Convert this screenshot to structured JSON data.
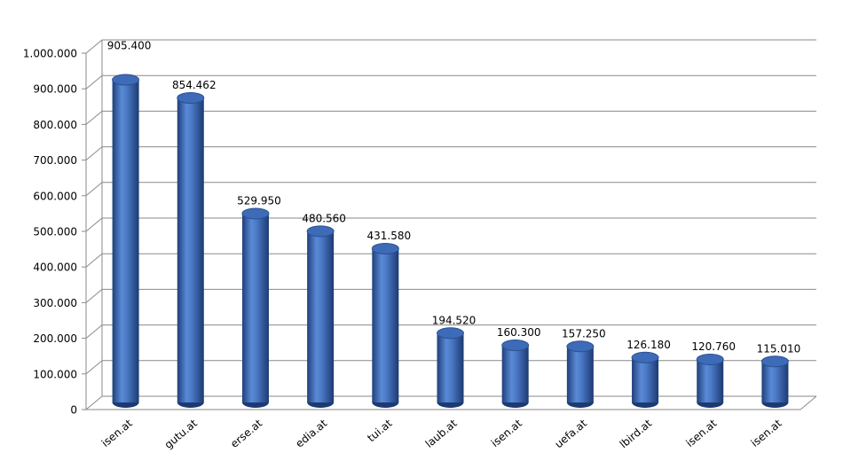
{
  "chart_data": {
    "type": "bar",
    "categories": [
      "isen.at",
      "gutu.at",
      "erse.at",
      "edia.at",
      "tui.at",
      "laub.at",
      "isen.at",
      "uefa.at",
      "lbird.at",
      "isen.at",
      "isen.at"
    ],
    "values": [
      905400,
      854462,
      529950,
      480560,
      431580,
      194520,
      160300,
      157250,
      126180,
      120760,
      115010
    ],
    "value_labels": [
      "905.400",
      "854.462",
      "529.950",
      "480.560",
      "431.580",
      "194.520",
      "160.300",
      "157.250",
      "126.180",
      "120.760",
      "115.010"
    ],
    "color": "#3f6fbf",
    "ylim": [
      0,
      1000000
    ],
    "yticks": [
      0,
      {
        "value": 100000,
        "label": "100.000"
      },
      {
        "value": 200000,
        "label": "200.000"
      },
      {
        "value": 300000,
        "label": "300.000"
      },
      {
        "value": 400000,
        "label": "400.000"
      },
      {
        "value": 500000,
        "label": "500.000"
      },
      {
        "value": 600000,
        "label": "600.000"
      },
      {
        "value": 700000,
        "label": "700.000"
      },
      {
        "value": 800000,
        "label": "800.000"
      },
      {
        "value": 900000,
        "label": "900.000"
      },
      {
        "value": 1000000,
        "label": "1.000.000"
      }
    ],
    "grid": true
  }
}
